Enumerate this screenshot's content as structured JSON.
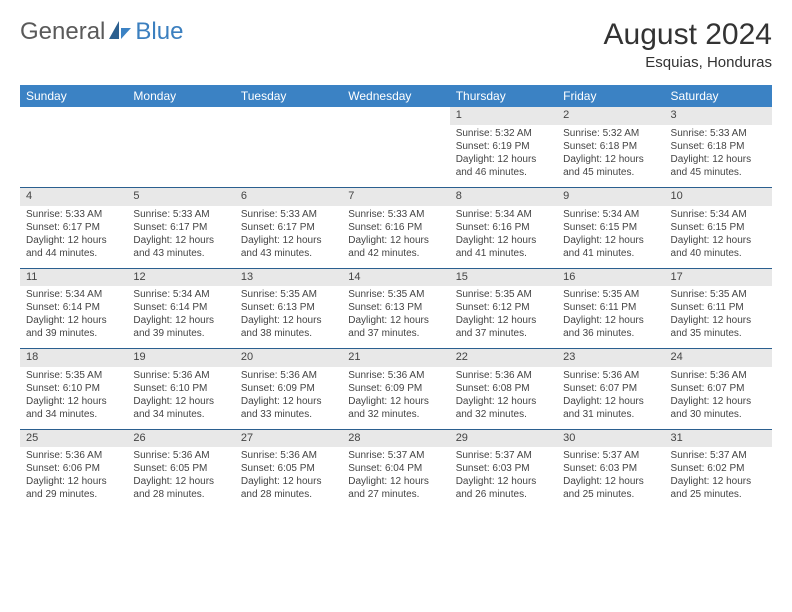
{
  "logo": {
    "general": "General",
    "blue": "Blue"
  },
  "title": "August 2024",
  "location": "Esquias, Honduras",
  "header_color": "#3b82c4",
  "daynum_bg": "#e8e8e8",
  "rule_color": "#2b5f8f",
  "text_color": "#444",
  "days": [
    "Sunday",
    "Monday",
    "Tuesday",
    "Wednesday",
    "Thursday",
    "Friday",
    "Saturday"
  ],
  "weeks": [
    [
      null,
      null,
      null,
      null,
      {
        "n": "1",
        "sr": "5:32 AM",
        "ss": "6:19 PM",
        "dl": "12 hours and 46 minutes."
      },
      {
        "n": "2",
        "sr": "5:32 AM",
        "ss": "6:18 PM",
        "dl": "12 hours and 45 minutes."
      },
      {
        "n": "3",
        "sr": "5:33 AM",
        "ss": "6:18 PM",
        "dl": "12 hours and 45 minutes."
      }
    ],
    [
      {
        "n": "4",
        "sr": "5:33 AM",
        "ss": "6:17 PM",
        "dl": "12 hours and 44 minutes."
      },
      {
        "n": "5",
        "sr": "5:33 AM",
        "ss": "6:17 PM",
        "dl": "12 hours and 43 minutes."
      },
      {
        "n": "6",
        "sr": "5:33 AM",
        "ss": "6:17 PM",
        "dl": "12 hours and 43 minutes."
      },
      {
        "n": "7",
        "sr": "5:33 AM",
        "ss": "6:16 PM",
        "dl": "12 hours and 42 minutes."
      },
      {
        "n": "8",
        "sr": "5:34 AM",
        "ss": "6:16 PM",
        "dl": "12 hours and 41 minutes."
      },
      {
        "n": "9",
        "sr": "5:34 AM",
        "ss": "6:15 PM",
        "dl": "12 hours and 41 minutes."
      },
      {
        "n": "10",
        "sr": "5:34 AM",
        "ss": "6:15 PM",
        "dl": "12 hours and 40 minutes."
      }
    ],
    [
      {
        "n": "11",
        "sr": "5:34 AM",
        "ss": "6:14 PM",
        "dl": "12 hours and 39 minutes."
      },
      {
        "n": "12",
        "sr": "5:34 AM",
        "ss": "6:14 PM",
        "dl": "12 hours and 39 minutes."
      },
      {
        "n": "13",
        "sr": "5:35 AM",
        "ss": "6:13 PM",
        "dl": "12 hours and 38 minutes."
      },
      {
        "n": "14",
        "sr": "5:35 AM",
        "ss": "6:13 PM",
        "dl": "12 hours and 37 minutes."
      },
      {
        "n": "15",
        "sr": "5:35 AM",
        "ss": "6:12 PM",
        "dl": "12 hours and 37 minutes."
      },
      {
        "n": "16",
        "sr": "5:35 AM",
        "ss": "6:11 PM",
        "dl": "12 hours and 36 minutes."
      },
      {
        "n": "17",
        "sr": "5:35 AM",
        "ss": "6:11 PM",
        "dl": "12 hours and 35 minutes."
      }
    ],
    [
      {
        "n": "18",
        "sr": "5:35 AM",
        "ss": "6:10 PM",
        "dl": "12 hours and 34 minutes."
      },
      {
        "n": "19",
        "sr": "5:36 AM",
        "ss": "6:10 PM",
        "dl": "12 hours and 34 minutes."
      },
      {
        "n": "20",
        "sr": "5:36 AM",
        "ss": "6:09 PM",
        "dl": "12 hours and 33 minutes."
      },
      {
        "n": "21",
        "sr": "5:36 AM",
        "ss": "6:09 PM",
        "dl": "12 hours and 32 minutes."
      },
      {
        "n": "22",
        "sr": "5:36 AM",
        "ss": "6:08 PM",
        "dl": "12 hours and 32 minutes."
      },
      {
        "n": "23",
        "sr": "5:36 AM",
        "ss": "6:07 PM",
        "dl": "12 hours and 31 minutes."
      },
      {
        "n": "24",
        "sr": "5:36 AM",
        "ss": "6:07 PM",
        "dl": "12 hours and 30 minutes."
      }
    ],
    [
      {
        "n": "25",
        "sr": "5:36 AM",
        "ss": "6:06 PM",
        "dl": "12 hours and 29 minutes."
      },
      {
        "n": "26",
        "sr": "5:36 AM",
        "ss": "6:05 PM",
        "dl": "12 hours and 28 minutes."
      },
      {
        "n": "27",
        "sr": "5:36 AM",
        "ss": "6:05 PM",
        "dl": "12 hours and 28 minutes."
      },
      {
        "n": "28",
        "sr": "5:37 AM",
        "ss": "6:04 PM",
        "dl": "12 hours and 27 minutes."
      },
      {
        "n": "29",
        "sr": "5:37 AM",
        "ss": "6:03 PM",
        "dl": "12 hours and 26 minutes."
      },
      {
        "n": "30",
        "sr": "5:37 AM",
        "ss": "6:03 PM",
        "dl": "12 hours and 25 minutes."
      },
      {
        "n": "31",
        "sr": "5:37 AM",
        "ss": "6:02 PM",
        "dl": "12 hours and 25 minutes."
      }
    ]
  ],
  "labels": {
    "sunrise": "Sunrise:",
    "sunset": "Sunset:",
    "daylight": "Daylight:"
  }
}
